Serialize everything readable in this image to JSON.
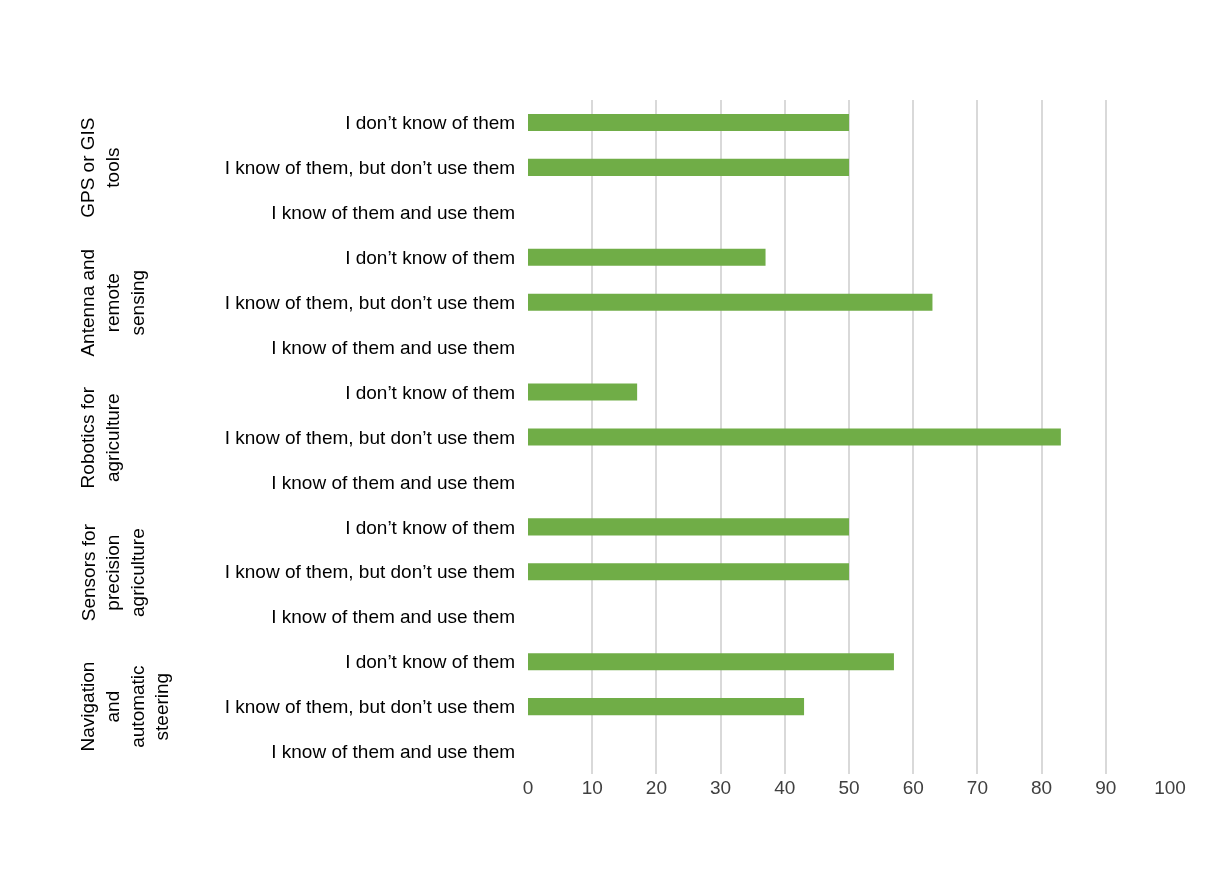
{
  "chart_data": {
    "type": "bar",
    "orientation": "horizontal",
    "categories": [
      "I don’t know of them",
      "I know of them, but don’t use them",
      "I know of them and use them",
      "I don’t know of them",
      "I know of them, but don’t use them",
      "I know of them and use them",
      "I don’t know of them",
      "I know of them, but don’t use them",
      "I know of them and use them",
      "I don’t know of them",
      "I know of them, but don’t use them",
      "I know of them and use them",
      "I don’t know of them",
      "I know of them, but don’t use them",
      "I know of them and use them"
    ],
    "values": [
      50,
      50,
      0,
      37,
      63,
      0,
      17,
      83,
      0,
      50,
      50,
      0,
      57,
      43,
      0
    ],
    "color": "#70ad47",
    "annotations": [
      "GPS or GIS tools",
      "Antenna and remote sensing",
      "Robotics for agriculture",
      "Sensors for precision agriculture",
      "Navigation and automatic steering"
    ],
    "xlim": [
      0,
      100
    ],
    "xticks": [
      0,
      10,
      20,
      30,
      40,
      50,
      60,
      70,
      80,
      90,
      100
    ],
    "grid": "x"
  }
}
